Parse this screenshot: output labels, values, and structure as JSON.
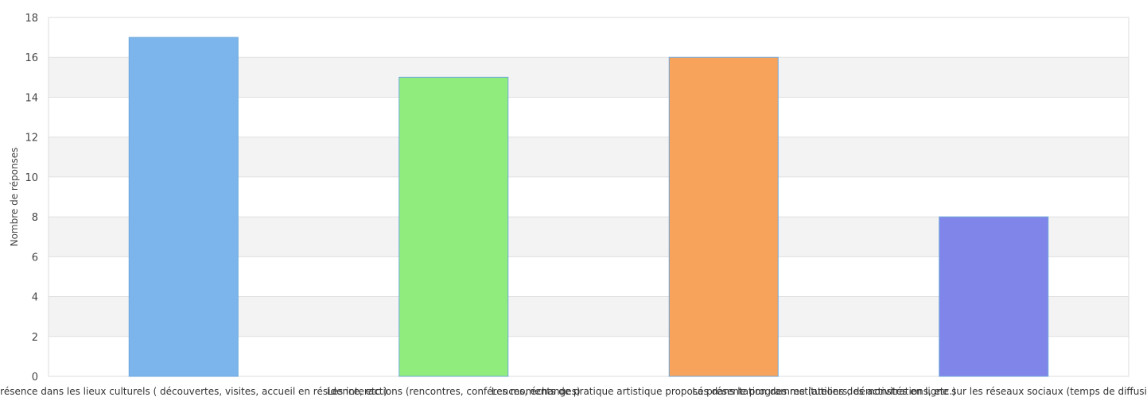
{
  "chart_data": {
    "type": "bar",
    "title": "",
    "xlabel": "",
    "ylabel": "Nombre de réponses",
    "ylim": [
      0,
      18
    ],
    "yticks": [
      0,
      2,
      4,
      6,
      8,
      10,
      12,
      14,
      16,
      18
    ],
    "categories": [
      "La présence dans les lieux culturels ( découvertes, visites, accueil en résidence, etc.)",
      "Les interactions (rencontres, conférences, échanges)",
      "Les moments de pratique artistique proposés dans le programme (ateliers, démonstrations, etc.)",
      "La présentation des restitutions des activités en ligne sur les réseaux sociaux (temps de diffusion des productions collectives)"
    ],
    "values": [
      17,
      15,
      16,
      8
    ],
    "colors": [
      "#7cb5ec",
      "#90ed7d",
      "#f7a35c",
      "#8085e9"
    ],
    "grid": true,
    "legend": "none"
  }
}
